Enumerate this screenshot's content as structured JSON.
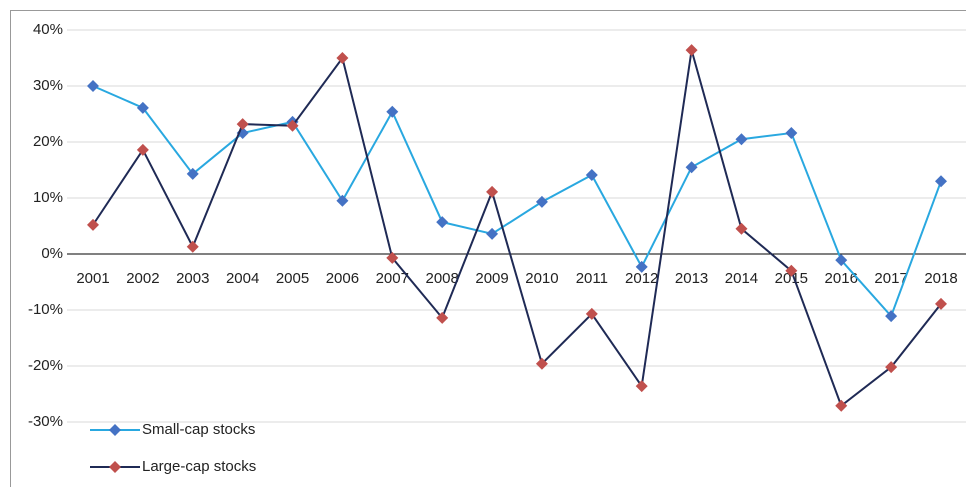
{
  "chart_data": {
    "type": "line",
    "categories": [
      "2001",
      "2002",
      "2003",
      "2004",
      "2005",
      "2006",
      "2007",
      "2008",
      "2009",
      "2010",
      "2011",
      "2012",
      "2013",
      "2014",
      "2015",
      "2016",
      "2017",
      "2018"
    ],
    "series": [
      {
        "name": "Small-cap stocks",
        "color": "#29a8e0",
        "marker_color": "#4472c4",
        "values": [
          30.0,
          26.1,
          14.3,
          21.6,
          23.6,
          9.5,
          25.4,
          5.7,
          3.6,
          9.3,
          14.1,
          -2.3,
          15.5,
          20.5,
          21.6,
          -1.1,
          -11.1,
          13.0
        ]
      },
      {
        "name": "Large-cap stocks",
        "color": "#1f2a55",
        "marker_color": "#c0504d",
        "values": [
          5.2,
          18.6,
          1.3,
          23.2,
          22.9,
          35.0,
          -0.7,
          -11.4,
          11.1,
          -19.6,
          -10.7,
          -23.6,
          36.4,
          4.5,
          -3.0,
          -27.1,
          -20.2,
          -8.9
        ]
      }
    ],
    "ylim": [
      -40,
      40
    ],
    "yticks": [
      {
        "value": -30,
        "label": "-30%"
      },
      {
        "value": -20,
        "label": "-20%"
      },
      {
        "value": -10,
        "label": "-10%"
      },
      {
        "value": 0,
        "label": "0%"
      },
      {
        "value": 10,
        "label": "10%"
      },
      {
        "value": 20,
        "label": "20%"
      },
      {
        "value": 30,
        "label": "30%"
      },
      {
        "value": 40,
        "label": "40%"
      }
    ],
    "grid": true,
    "legend": "bottom-left"
  }
}
